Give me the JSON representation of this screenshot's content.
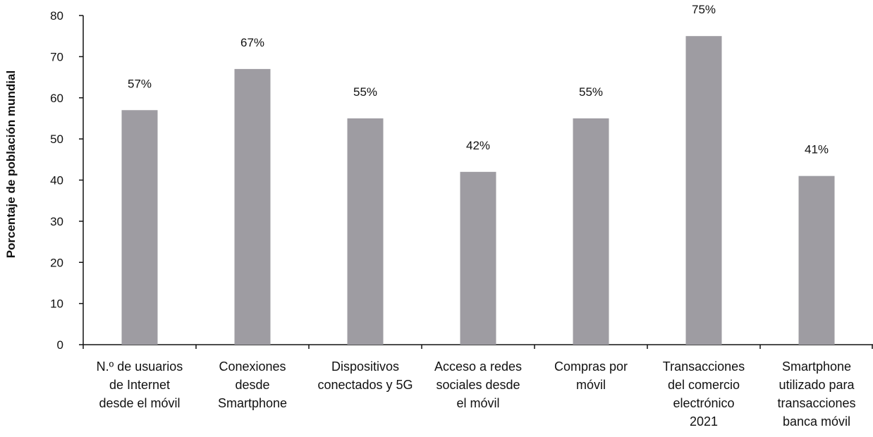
{
  "colors": {
    "bar": "#9e9ca2",
    "axis": "#111111"
  },
  "chart_data": {
    "type": "bar",
    "ylabel": "Porcentaje de población mundial",
    "xlabel": "",
    "ylim": [
      0,
      80
    ],
    "yticks": [
      0,
      10,
      20,
      30,
      40,
      50,
      60,
      70,
      80
    ],
    "grid": false,
    "legend": "none",
    "categories": [
      [
        "N.º de usuarios",
        "de Internet",
        "desde el móvil"
      ],
      [
        "Conexiones",
        "desde",
        "Smartphone"
      ],
      [
        "Dispositivos",
        "conectados y 5G"
      ],
      [
        "Acceso a redes",
        "sociales desde",
        "el móvil"
      ],
      [
        "Compras por",
        "móvil"
      ],
      [
        "Transacciones",
        "del comercio",
        "electrónico",
        "2021"
      ],
      [
        "Smartphone",
        "utilizado para",
        "transacciones",
        "banca móvil"
      ]
    ],
    "values": [
      57,
      67,
      55,
      42,
      55,
      75,
      41
    ],
    "data_labels": [
      "57%",
      "67%",
      "55%",
      "42%",
      "55%",
      "75%",
      "41%"
    ]
  }
}
